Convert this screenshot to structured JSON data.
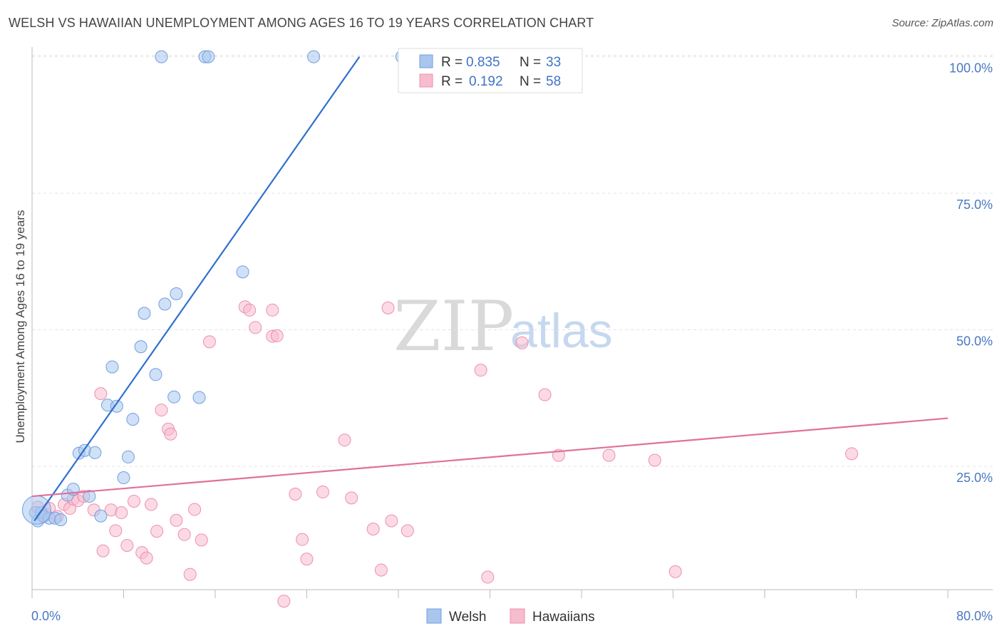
{
  "title": "WELSH VS HAWAIIAN UNEMPLOYMENT AMONG AGES 16 TO 19 YEARS CORRELATION CHART",
  "source": "Source: ZipAtlas.com",
  "watermark": {
    "zip": "ZIP",
    "atlas": "atlas"
  },
  "legend_top": {
    "rows": [
      {
        "r_label": "R =",
        "r_value": "0.835",
        "n_label": "N =",
        "n_value": "33",
        "color": "#a9c6ee",
        "stroke": "#6f9fe0"
      },
      {
        "r_label": "R =",
        "r_value": "0.192",
        "n_label": "N =",
        "n_value": "58",
        "color": "#f7bccd",
        "stroke": "#ee8fae"
      }
    ]
  },
  "legend_bottom": {
    "welsh": "Welsh",
    "hawaiians": "Hawaiians"
  },
  "chart_data": {
    "type": "scatter",
    "title": "WELSH VS HAWAIIAN UNEMPLOYMENT AMONG AGES 16 TO 19 YEARS CORRELATION CHART",
    "xlabel": "",
    "ylabel": "Unemployment Among Ages 16 to 19 years",
    "xlim": [
      0,
      80
    ],
    "ylim": [
      0,
      105
    ],
    "x_tick_labels": [
      "0.0%",
      "80.0%"
    ],
    "y_ticks": [
      25,
      50,
      75,
      100
    ],
    "y_tick_labels": [
      "25.0%",
      "50.0%",
      "75.0%",
      "100.0%"
    ],
    "grid": true,
    "legend": "top-center",
    "series": [
      {
        "name": "Welsh",
        "color": "#a9c6ee",
        "stroke": "#6f9fe0",
        "line_color": "#2f6fcf",
        "r": 0.835,
        "n": 33,
        "trend": {
          "x": [
            0.2,
            28.6
          ],
          "y": [
            15.0,
            100.0
          ]
        },
        "points": [
          [
            0.3,
            16.5
          ],
          [
            0.5,
            15.0
          ],
          [
            0.8,
            16.5
          ],
          [
            1.0,
            15.8
          ],
          [
            1.5,
            15.5
          ],
          [
            2.0,
            15.5
          ],
          [
            2.5,
            15.2
          ],
          [
            3.1,
            19.7
          ],
          [
            3.6,
            20.8
          ],
          [
            4.1,
            27.4
          ],
          [
            4.6,
            27.9
          ],
          [
            5.0,
            19.5
          ],
          [
            5.5,
            27.5
          ],
          [
            6.0,
            15.9
          ],
          [
            6.6,
            36.2
          ],
          [
            7.0,
            43.2
          ],
          [
            7.4,
            36.0
          ],
          [
            8.0,
            22.9
          ],
          [
            8.4,
            26.7
          ],
          [
            8.8,
            33.6
          ],
          [
            9.5,
            46.9
          ],
          [
            9.8,
            53.0
          ],
          [
            10.8,
            41.8
          ],
          [
            11.6,
            54.7
          ],
          [
            12.4,
            37.7
          ],
          [
            12.6,
            56.6
          ],
          [
            14.6,
            37.6
          ],
          [
            11.3,
            100.0
          ],
          [
            15.1,
            100.0
          ],
          [
            15.4,
            100.0
          ],
          [
            18.4,
            60.6
          ],
          [
            24.6,
            100.0
          ],
          [
            32.3,
            100.0
          ]
        ],
        "big_point": [
          0.4,
          17.0
        ]
      },
      {
        "name": "Hawaiians",
        "color": "#f7bccd",
        "stroke": "#ee8fae",
        "line_color": "#e0709a",
        "r": 0.192,
        "n": 58,
        "trend": {
          "x": [
            0.0,
            80.0
          ],
          "y": [
            19.5,
            33.8
          ]
        },
        "points": [
          [
            0.5,
            17.5
          ],
          [
            1.2,
            16.2
          ],
          [
            1.5,
            17.3
          ],
          [
            2.2,
            15.8
          ],
          [
            2.8,
            18.0
          ],
          [
            3.3,
            17.3
          ],
          [
            3.6,
            19.0
          ],
          [
            4.0,
            18.7
          ],
          [
            4.5,
            19.5
          ],
          [
            5.4,
            17.0
          ],
          [
            6.2,
            9.5
          ],
          [
            6.0,
            38.3
          ],
          [
            6.9,
            17.0
          ],
          [
            7.3,
            13.2
          ],
          [
            7.8,
            16.5
          ],
          [
            8.3,
            10.5
          ],
          [
            8.9,
            18.6
          ],
          [
            9.6,
            9.2
          ],
          [
            10.0,
            8.2
          ],
          [
            10.4,
            18.0
          ],
          [
            10.9,
            13.1
          ],
          [
            11.3,
            35.3
          ],
          [
            11.9,
            31.8
          ],
          [
            12.1,
            30.9
          ],
          [
            12.6,
            15.1
          ],
          [
            13.3,
            12.5
          ],
          [
            13.8,
            5.2
          ],
          [
            14.2,
            17.1
          ],
          [
            14.8,
            11.5
          ],
          [
            15.5,
            47.8
          ],
          [
            18.6,
            54.2
          ],
          [
            19.0,
            53.6
          ],
          [
            19.5,
            50.4
          ],
          [
            21.0,
            53.6
          ],
          [
            21.0,
            48.8
          ],
          [
            21.4,
            48.9
          ],
          [
            22.0,
            0.3
          ],
          [
            23.0,
            19.9
          ],
          [
            23.6,
            11.6
          ],
          [
            24.0,
            8.0
          ],
          [
            25.4,
            20.3
          ],
          [
            27.3,
            29.8
          ],
          [
            27.9,
            19.2
          ],
          [
            29.8,
            13.5
          ],
          [
            30.5,
            6.0
          ],
          [
            31.1,
            54.0
          ],
          [
            31.4,
            15.0
          ],
          [
            32.8,
            13.2
          ],
          [
            39.2,
            42.6
          ],
          [
            39.8,
            4.7
          ],
          [
            42.8,
            47.6
          ],
          [
            44.8,
            38.1
          ],
          [
            46.0,
            27.0
          ],
          [
            50.4,
            27.0
          ],
          [
            54.4,
            26.1
          ],
          [
            56.2,
            5.7
          ],
          [
            71.6,
            27.3
          ],
          [
            1.0,
            16.0
          ]
        ]
      }
    ]
  }
}
